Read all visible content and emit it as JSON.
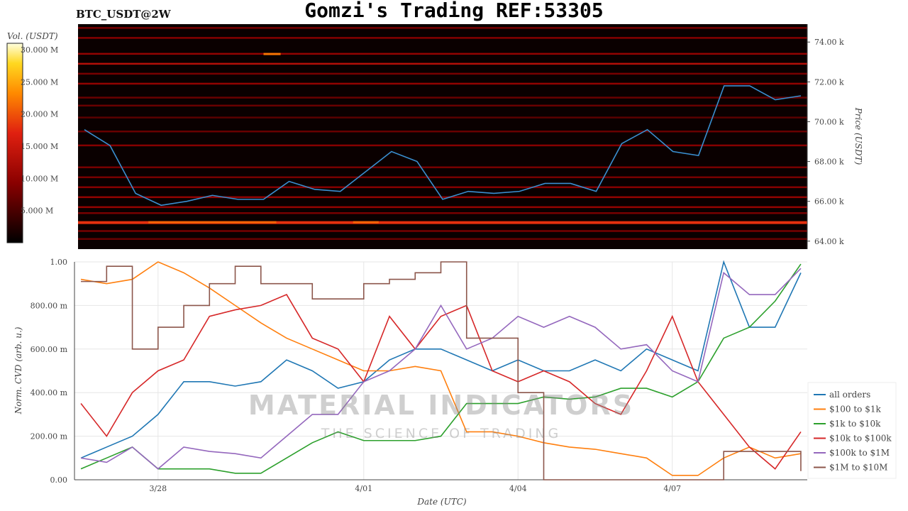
{
  "title": "Gomzi's Trading REF:53305",
  "subtitle": "BTC_USDT@2W",
  "watermark": {
    "line1": "MATERIAL INDICATORS",
    "line2": "THE SCIENCE OF TRADING"
  },
  "colors": {
    "all orders": "#1f77b4",
    "$100 to $1k": "#ff7f0e",
    "$1k to $10k": "#2ca02c",
    "$10k to $100k": "#d62728",
    "$100k to $1M": "#9467bd",
    "$1M to $10M": "#8c564b",
    "heat_bg": "#0a0000"
  },
  "chart_data": [
    {
      "type": "heatmap",
      "colorbar": {
        "label": "Vol. (USDT)",
        "ticks": [
          "5.000 M",
          "10.000 M",
          "15.000 M",
          "20.000 M",
          "25.000 M",
          "30.000 M"
        ],
        "tick_values": [
          5,
          10,
          15,
          20,
          25,
          30
        ],
        "range": [
          0,
          31
        ]
      },
      "ylabel": "Price (USDT)",
      "y_ticks": [
        "64.00 k",
        "66.00 k",
        "68.00 k",
        "70.00 k",
        "72.00 k",
        "74.00 k"
      ],
      "y_tick_values": [
        64,
        66,
        68,
        70,
        72,
        74
      ],
      "ylim": [
        63.6,
        74.9
      ],
      "levels": [
        {
          "price": 74.7,
          "vol": 8
        },
        {
          "price": 74.2,
          "vol": 9
        },
        {
          "price": 73.4,
          "vol": 10
        },
        {
          "price": 72.9,
          "vol": 13
        },
        {
          "price": 72.4,
          "vol": 8
        },
        {
          "price": 71.9,
          "vol": 10
        },
        {
          "price": 71.2,
          "vol": 7
        },
        {
          "price": 70.8,
          "vol": 7
        },
        {
          "price": 70.2,
          "vol": 6
        },
        {
          "price": 69.5,
          "vol": 7
        },
        {
          "price": 68.8,
          "vol": 9
        },
        {
          "price": 67.7,
          "vol": 8
        },
        {
          "price": 67.2,
          "vol": 8
        },
        {
          "price": 66.7,
          "vol": 9
        },
        {
          "price": 66.2,
          "vol": 10
        },
        {
          "price": 65.7,
          "vol": 10
        },
        {
          "price": 65.4,
          "vol": 8
        },
        {
          "price": 64.95,
          "vol": 18
        },
        {
          "price": 64.5,
          "vol": 8
        },
        {
          "price": 64.1,
          "vol": 7
        }
      ],
      "hot_spots": [
        {
          "price": 64.95,
          "from": "2024-03-27T18:00",
          "to": "2024-03-30T06:00",
          "vol": 21
        },
        {
          "price": 64.95,
          "from": "2024-03-31T18:00",
          "to": "2024-04-01T06:00",
          "vol": 21
        },
        {
          "price": 73.4,
          "from": "2024-03-30T00:00",
          "to": "2024-03-30T08:00",
          "vol": 22
        }
      ],
      "series": [
        {
          "type": "line",
          "color": "#3a8fd0",
          "x_ref": "x",
          "values": [
            69.6,
            68.8,
            66.4,
            65.8,
            66.0,
            66.3,
            66.1,
            66.1,
            67.0,
            66.6,
            66.5,
            67.5,
            68.5,
            68.0,
            66.1,
            66.5,
            66.4,
            66.5,
            66.9,
            66.9,
            66.5,
            68.9,
            69.6,
            68.5,
            68.3,
            71.8,
            71.8,
            71.1,
            71.3
          ]
        }
      ]
    },
    {
      "type": "line",
      "xlabel": "Date (UTC)",
      "ylabel": "Norm. CVD (arb. u.)",
      "ylim": [
        0,
        1
      ],
      "y_ticks": [
        "0.00",
        "200.00 m",
        "400.00 m",
        "600.00 m",
        "800.00 m",
        "1.00"
      ],
      "y_tick_values": [
        0,
        0.2,
        0.4,
        0.6,
        0.8,
        1.0
      ],
      "x_ticks": [
        "3/28",
        "4/01",
        "4/04",
        "4/07"
      ],
      "x_tick_values": [
        "2024-03-28T00:00",
        "2024-04-01T00:00",
        "2024-04-04T00:00",
        "2024-04-07T00:00"
      ],
      "xlim": [
        "2024-03-26T09:00",
        "2024-04-09T15:00"
      ],
      "grid": true,
      "legend": "right",
      "x": [
        "2024-03-26T12:00",
        "2024-03-27T00:00",
        "2024-03-27T12:00",
        "2024-03-28T00:00",
        "2024-03-28T12:00",
        "2024-03-29T00:00",
        "2024-03-29T12:00",
        "2024-03-30T00:00",
        "2024-03-30T12:00",
        "2024-03-31T00:00",
        "2024-03-31T12:00",
        "2024-04-01T00:00",
        "2024-04-01T12:00",
        "2024-04-02T00:00",
        "2024-04-02T12:00",
        "2024-04-03T00:00",
        "2024-04-03T12:00",
        "2024-04-04T00:00",
        "2024-04-04T12:00",
        "2024-04-05T00:00",
        "2024-04-05T12:00",
        "2024-04-06T00:00",
        "2024-04-06T12:00",
        "2024-04-07T00:00",
        "2024-04-07T12:00",
        "2024-04-08T00:00",
        "2024-04-08T12:00",
        "2024-04-09T00:00",
        "2024-04-09T12:00"
      ],
      "series": [
        {
          "name": "all orders",
          "values": [
            0.1,
            0.15,
            0.2,
            0.3,
            0.45,
            0.45,
            0.43,
            0.45,
            0.55,
            0.5,
            0.42,
            0.45,
            0.55,
            0.6,
            0.6,
            0.55,
            0.5,
            0.55,
            0.5,
            0.5,
            0.55,
            0.5,
            0.6,
            0.55,
            0.5,
            1.0,
            0.7,
            0.7,
            0.95
          ]
        },
        {
          "name": "$100 to $1k",
          "values": [
            0.92,
            0.9,
            0.92,
            1.0,
            0.95,
            0.88,
            0.8,
            0.72,
            0.65,
            0.6,
            0.55,
            0.5,
            0.5,
            0.52,
            0.5,
            0.22,
            0.22,
            0.2,
            0.17,
            0.15,
            0.14,
            0.12,
            0.1,
            0.02,
            0.02,
            0.1,
            0.15,
            0.1,
            0.12
          ]
        },
        {
          "name": "$1k to $10k",
          "values": [
            0.05,
            0.1,
            0.15,
            0.05,
            0.05,
            0.05,
            0.03,
            0.03,
            0.1,
            0.17,
            0.22,
            0.18,
            0.18,
            0.18,
            0.2,
            0.35,
            0.35,
            0.35,
            0.38,
            0.37,
            0.38,
            0.42,
            0.42,
            0.38,
            0.45,
            0.65,
            0.7,
            0.82,
            0.99
          ]
        },
        {
          "name": "$10k to $100k",
          "values": [
            0.35,
            0.2,
            0.4,
            0.5,
            0.55,
            0.75,
            0.78,
            0.8,
            0.85,
            0.65,
            0.6,
            0.45,
            0.75,
            0.6,
            0.75,
            0.8,
            0.5,
            0.45,
            0.5,
            0.45,
            0.35,
            0.3,
            0.5,
            0.75,
            0.45,
            0.3,
            0.15,
            0.05,
            0.22
          ]
        },
        {
          "name": "$100k to $1M",
          "values": [
            0.1,
            0.08,
            0.15,
            0.05,
            0.15,
            0.13,
            0.12,
            0.1,
            0.2,
            0.3,
            0.3,
            0.45,
            0.5,
            0.6,
            0.8,
            0.6,
            0.65,
            0.75,
            0.7,
            0.75,
            0.7,
            0.6,
            0.62,
            0.5,
            0.45,
            0.95,
            0.85,
            0.85,
            0.97
          ]
        },
        {
          "name": "$1M to $10M",
          "step": true,
          "values": [
            0.91,
            0.98,
            0.6,
            0.7,
            0.8,
            0.9,
            0.98,
            0.9,
            0.9,
            0.83,
            0.83,
            0.9,
            0.92,
            0.95,
            1.0,
            0.65,
            0.65,
            0.4,
            0.0,
            0.0,
            0.0,
            0.0,
            0.0,
            0.0,
            0.0,
            0.13,
            0.13,
            0.13,
            0.04
          ]
        }
      ]
    }
  ]
}
